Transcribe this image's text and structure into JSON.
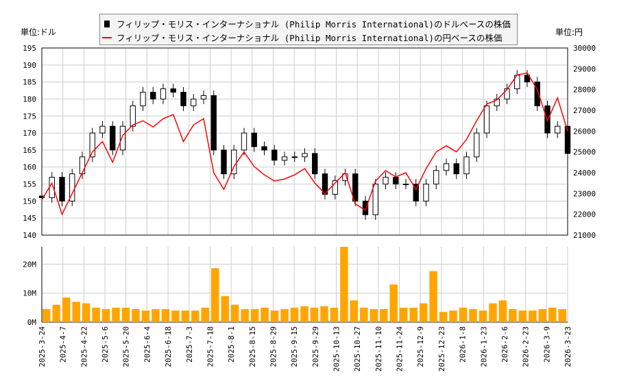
{
  "legend": {
    "dollar": "フィリップ・モリス・インターナショナル (Philip Morris International)のドルベースの株価",
    "yen": "フィリップ・モリス・インターナショナル (Philip Morris International)の円ベースの株価"
  },
  "units": {
    "left": "単位:ドル",
    "right": "単位:円"
  },
  "chart_data": [
    {
      "type": "candlestick+line",
      "ylim_left": [
        140,
        195
      ],
      "ylim_right": [
        21000,
        30000
      ],
      "yticks_left": [
        "140",
        "145",
        "150",
        "155",
        "160",
        "165",
        "170",
        "175",
        "180",
        "185",
        "190",
        "195"
      ],
      "yticks_right": [
        "21000",
        "22000",
        "23000",
        "24000",
        "25000",
        "26000",
        "27000",
        "28000",
        "29000",
        "30000"
      ],
      "grid": true,
      "legend_placement": "top",
      "colors": {
        "candle": "#000000",
        "yen_line": "#ff0000"
      },
      "weeks": [
        "2025-3-24",
        "2025-3-31",
        "2025-4-7",
        "2025-4-14",
        "2025-4-21",
        "2025-4-28",
        "2025-5-5",
        "2025-5-12",
        "2025-5-19",
        "2025-5-26",
        "2025-6-2",
        "2025-6-9",
        "2025-6-16",
        "2025-6-23",
        "2025-6-30",
        "2025-7-7",
        "2025-7-14",
        "2025-7-21",
        "2025-7-28",
        "2025-8-4",
        "2025-8-11",
        "2025-8-18",
        "2025-8-25",
        "2025-9-1",
        "2025-9-8",
        "2025-9-15",
        "2025-9-22",
        "2025-9-29",
        "2025-10-6",
        "2025-10-13",
        "2025-10-20",
        "2025-10-27",
        "2025-11-3",
        "2025-11-10",
        "2025-11-17",
        "2025-11-24",
        "2025-12-1",
        "2025-12-8",
        "2025-12-15",
        "2025-12-22",
        "2025-12-29",
        "2026-1-5",
        "2026-1-12",
        "2026-1-19",
        "2026-1-26",
        "2026-2-2",
        "2026-2-9",
        "2026-2-16",
        "2026-2-23",
        "2026-3-2",
        "2026-3-9",
        "2026-3-16",
        "2026-3-23"
      ],
      "close": [
        151,
        157,
        150,
        158,
        163,
        170,
        172,
        165,
        172,
        178,
        182,
        180,
        183,
        182,
        178,
        180,
        181,
        165,
        158,
        165,
        170,
        166,
        165,
        162,
        163,
        163,
        164,
        158,
        152,
        156,
        158,
        150,
        146,
        155,
        157,
        155,
        155,
        150,
        155,
        159,
        161,
        158,
        163,
        170,
        178,
        180,
        183,
        187,
        185,
        178,
        170,
        172,
        164
      ],
      "yen": [
        22700,
        23500,
        22000,
        23000,
        24000,
        25000,
        25500,
        24500,
        25800,
        26300,
        26500,
        26200,
        26600,
        26800,
        25500,
        26300,
        26600,
        24000,
        23200,
        24300,
        25000,
        24300,
        23900,
        23600,
        23700,
        23900,
        24200,
        23500,
        23000,
        23500,
        24000,
        22500,
        22200,
        23600,
        24100,
        23800,
        24000,
        23200,
        24200,
        25000,
        25300,
        25000,
        25600,
        26500,
        27300,
        27500,
        28000,
        28700,
        28800,
        28000,
        26500,
        27600,
        26000
      ]
    },
    {
      "type": "bar",
      "ylim": [
        0,
        26000000
      ],
      "yticks": [
        "0M",
        "10M",
        "20M"
      ],
      "color": "#ffa500",
      "volume_m": [
        4.5,
        6,
        8.5,
        7,
        6.5,
        5,
        4.5,
        5,
        5,
        4.5,
        4,
        4.5,
        4.5,
        4,
        4,
        4,
        5,
        18.6,
        9,
        6,
        4.5,
        4.5,
        5,
        4,
        4.5,
        5,
        5.5,
        5,
        5.5,
        5,
        26,
        7.5,
        5,
        4.5,
        4.5,
        13,
        5,
        5,
        6.5,
        17.6,
        3.5,
        4,
        5,
        4.5,
        4,
        6.5,
        7.5,
        4.5,
        4,
        4,
        4.5,
        5,
        4.5
      ]
    }
  ],
  "xticks": [
    "2025-3-24",
    "2025-4-7",
    "2025-4-22",
    "2025-5-6",
    "2025-5-20",
    "2025-6-4",
    "2025-6-18",
    "2025-7-3",
    "2025-7-18",
    "2025-8-1",
    "2025-8-15",
    "2025-8-29",
    "2025-9-15",
    "2025-9-29",
    "2025-10-13",
    "2025-10-27",
    "2025-11-10",
    "2025-11-24",
    "2025-12-9",
    "2025-12-23",
    "2026-1-8",
    "2026-1-23",
    "2026-2-6",
    "2026-2-23",
    "2026-3-9",
    "2026-3-23"
  ]
}
